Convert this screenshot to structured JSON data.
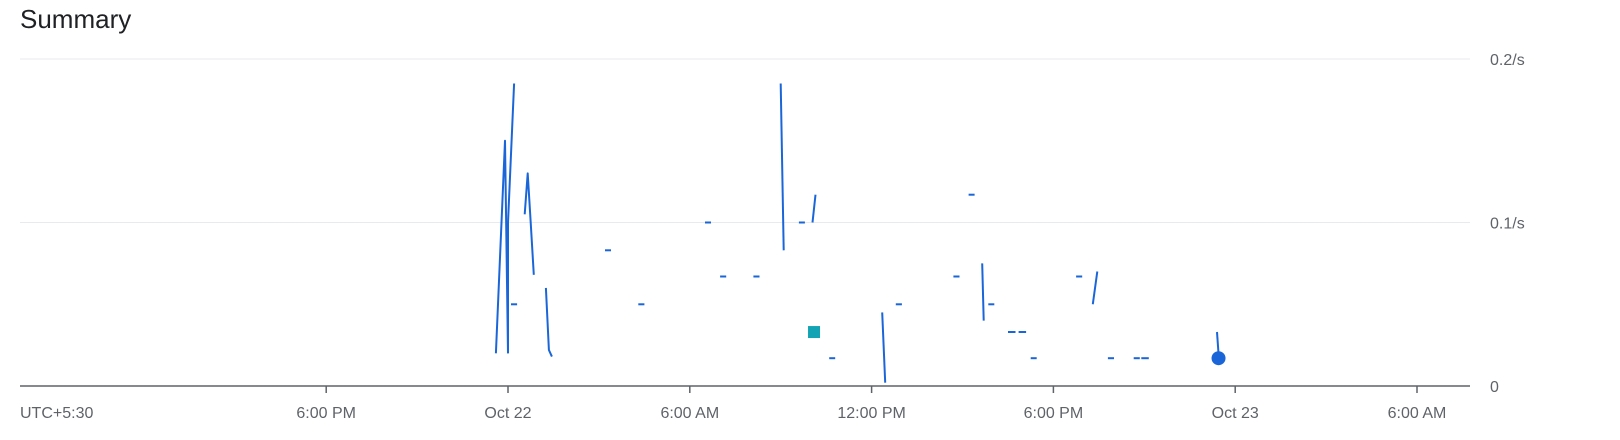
{
  "title": "Summary",
  "chart_data": {
    "type": "line",
    "title": "Summary",
    "timezone_label": "UTC+5:30",
    "x_tick_labels": [
      "6:00 PM",
      "Oct 22",
      "6:00 AM",
      "12:00 PM",
      "6:00 PM",
      "Oct 23",
      "6:00 AM"
    ],
    "y_tick_labels": [
      "0",
      "0.1/s",
      "0.2/s"
    ],
    "y_unit": "/s",
    "ylim": [
      0,
      0.2
    ],
    "x_range_hours": [
      -23.5,
      33.0
    ],
    "grid": true,
    "series_color": "#1a66d8",
    "extra_marker_color": "#12a4b4",
    "point_marker_color": "#1a66d8",
    "series": [
      {
        "segments": [
          [
            [
              -0.4,
              0.02
            ],
            [
              -0.1,
              0.15
            ],
            [
              0.0,
              0.02
            ]
          ],
          [
            [
              0.0,
              0.02
            ],
            [
              0.0,
              0.1
            ],
            [
              0.2,
              0.185
            ]
          ],
          [
            [
              0.1,
              0.05
            ],
            [
              0.3,
              0.05
            ]
          ],
          [
            [
              0.55,
              0.105
            ],
            [
              0.65,
              0.13
            ],
            [
              0.75,
              0.1
            ],
            [
              0.85,
              0.068
            ]
          ],
          [
            [
              1.25,
              0.06
            ],
            [
              1.35,
              0.022
            ],
            [
              1.45,
              0.018
            ]
          ],
          [
            [
              3.2,
              0.083
            ],
            [
              3.4,
              0.083
            ]
          ],
          [
            [
              4.3,
              0.05
            ],
            [
              4.5,
              0.05
            ]
          ],
          [
            [
              6.5,
              0.1
            ],
            [
              6.7,
              0.1
            ]
          ],
          [
            [
              7.0,
              0.067
            ],
            [
              7.2,
              0.067
            ]
          ],
          [
            [
              8.1,
              0.067
            ],
            [
              8.3,
              0.067
            ]
          ],
          [
            [
              9.0,
              0.185
            ],
            [
              9.1,
              0.083
            ]
          ],
          [
            [
              9.6,
              0.1
            ],
            [
              9.8,
              0.1
            ]
          ],
          [
            [
              10.05,
              0.1
            ],
            [
              10.15,
              0.117
            ]
          ],
          [
            [
              10.6,
              0.017
            ],
            [
              10.8,
              0.017
            ]
          ],
          [
            [
              12.35,
              0.045
            ],
            [
              12.45,
              0.002
            ]
          ],
          [
            [
              12.8,
              0.05
            ],
            [
              13.0,
              0.05
            ]
          ],
          [
            [
              14.7,
              0.067
            ],
            [
              14.9,
              0.067
            ]
          ],
          [
            [
              15.2,
              0.117
            ],
            [
              15.4,
              0.117
            ]
          ],
          [
            [
              15.65,
              0.075
            ],
            [
              15.7,
              0.04
            ]
          ],
          [
            [
              15.85,
              0.05
            ],
            [
              16.05,
              0.05
            ]
          ],
          [
            [
              16.5,
              0.033
            ],
            [
              16.75,
              0.033
            ]
          ],
          [
            [
              16.85,
              0.033
            ],
            [
              17.1,
              0.033
            ]
          ],
          [
            [
              17.25,
              0.017
            ],
            [
              17.45,
              0.017
            ]
          ],
          [
            [
              18.75,
              0.067
            ],
            [
              18.95,
              0.067
            ]
          ],
          [
            [
              19.3,
              0.05
            ],
            [
              19.45,
              0.07
            ]
          ],
          [
            [
              19.8,
              0.017
            ],
            [
              20.0,
              0.017
            ]
          ],
          [
            [
              20.65,
              0.017
            ],
            [
              20.85,
              0.017
            ]
          ],
          [
            [
              20.9,
              0.017
            ],
            [
              21.15,
              0.017
            ]
          ],
          [
            [
              23.4,
              0.033
            ],
            [
              23.45,
              0.02
            ]
          ]
        ]
      }
    ],
    "markers": [
      {
        "shape": "square",
        "x": 10.1,
        "y": 0.033
      },
      {
        "shape": "circle",
        "x": 23.45,
        "y": 0.017
      }
    ]
  }
}
